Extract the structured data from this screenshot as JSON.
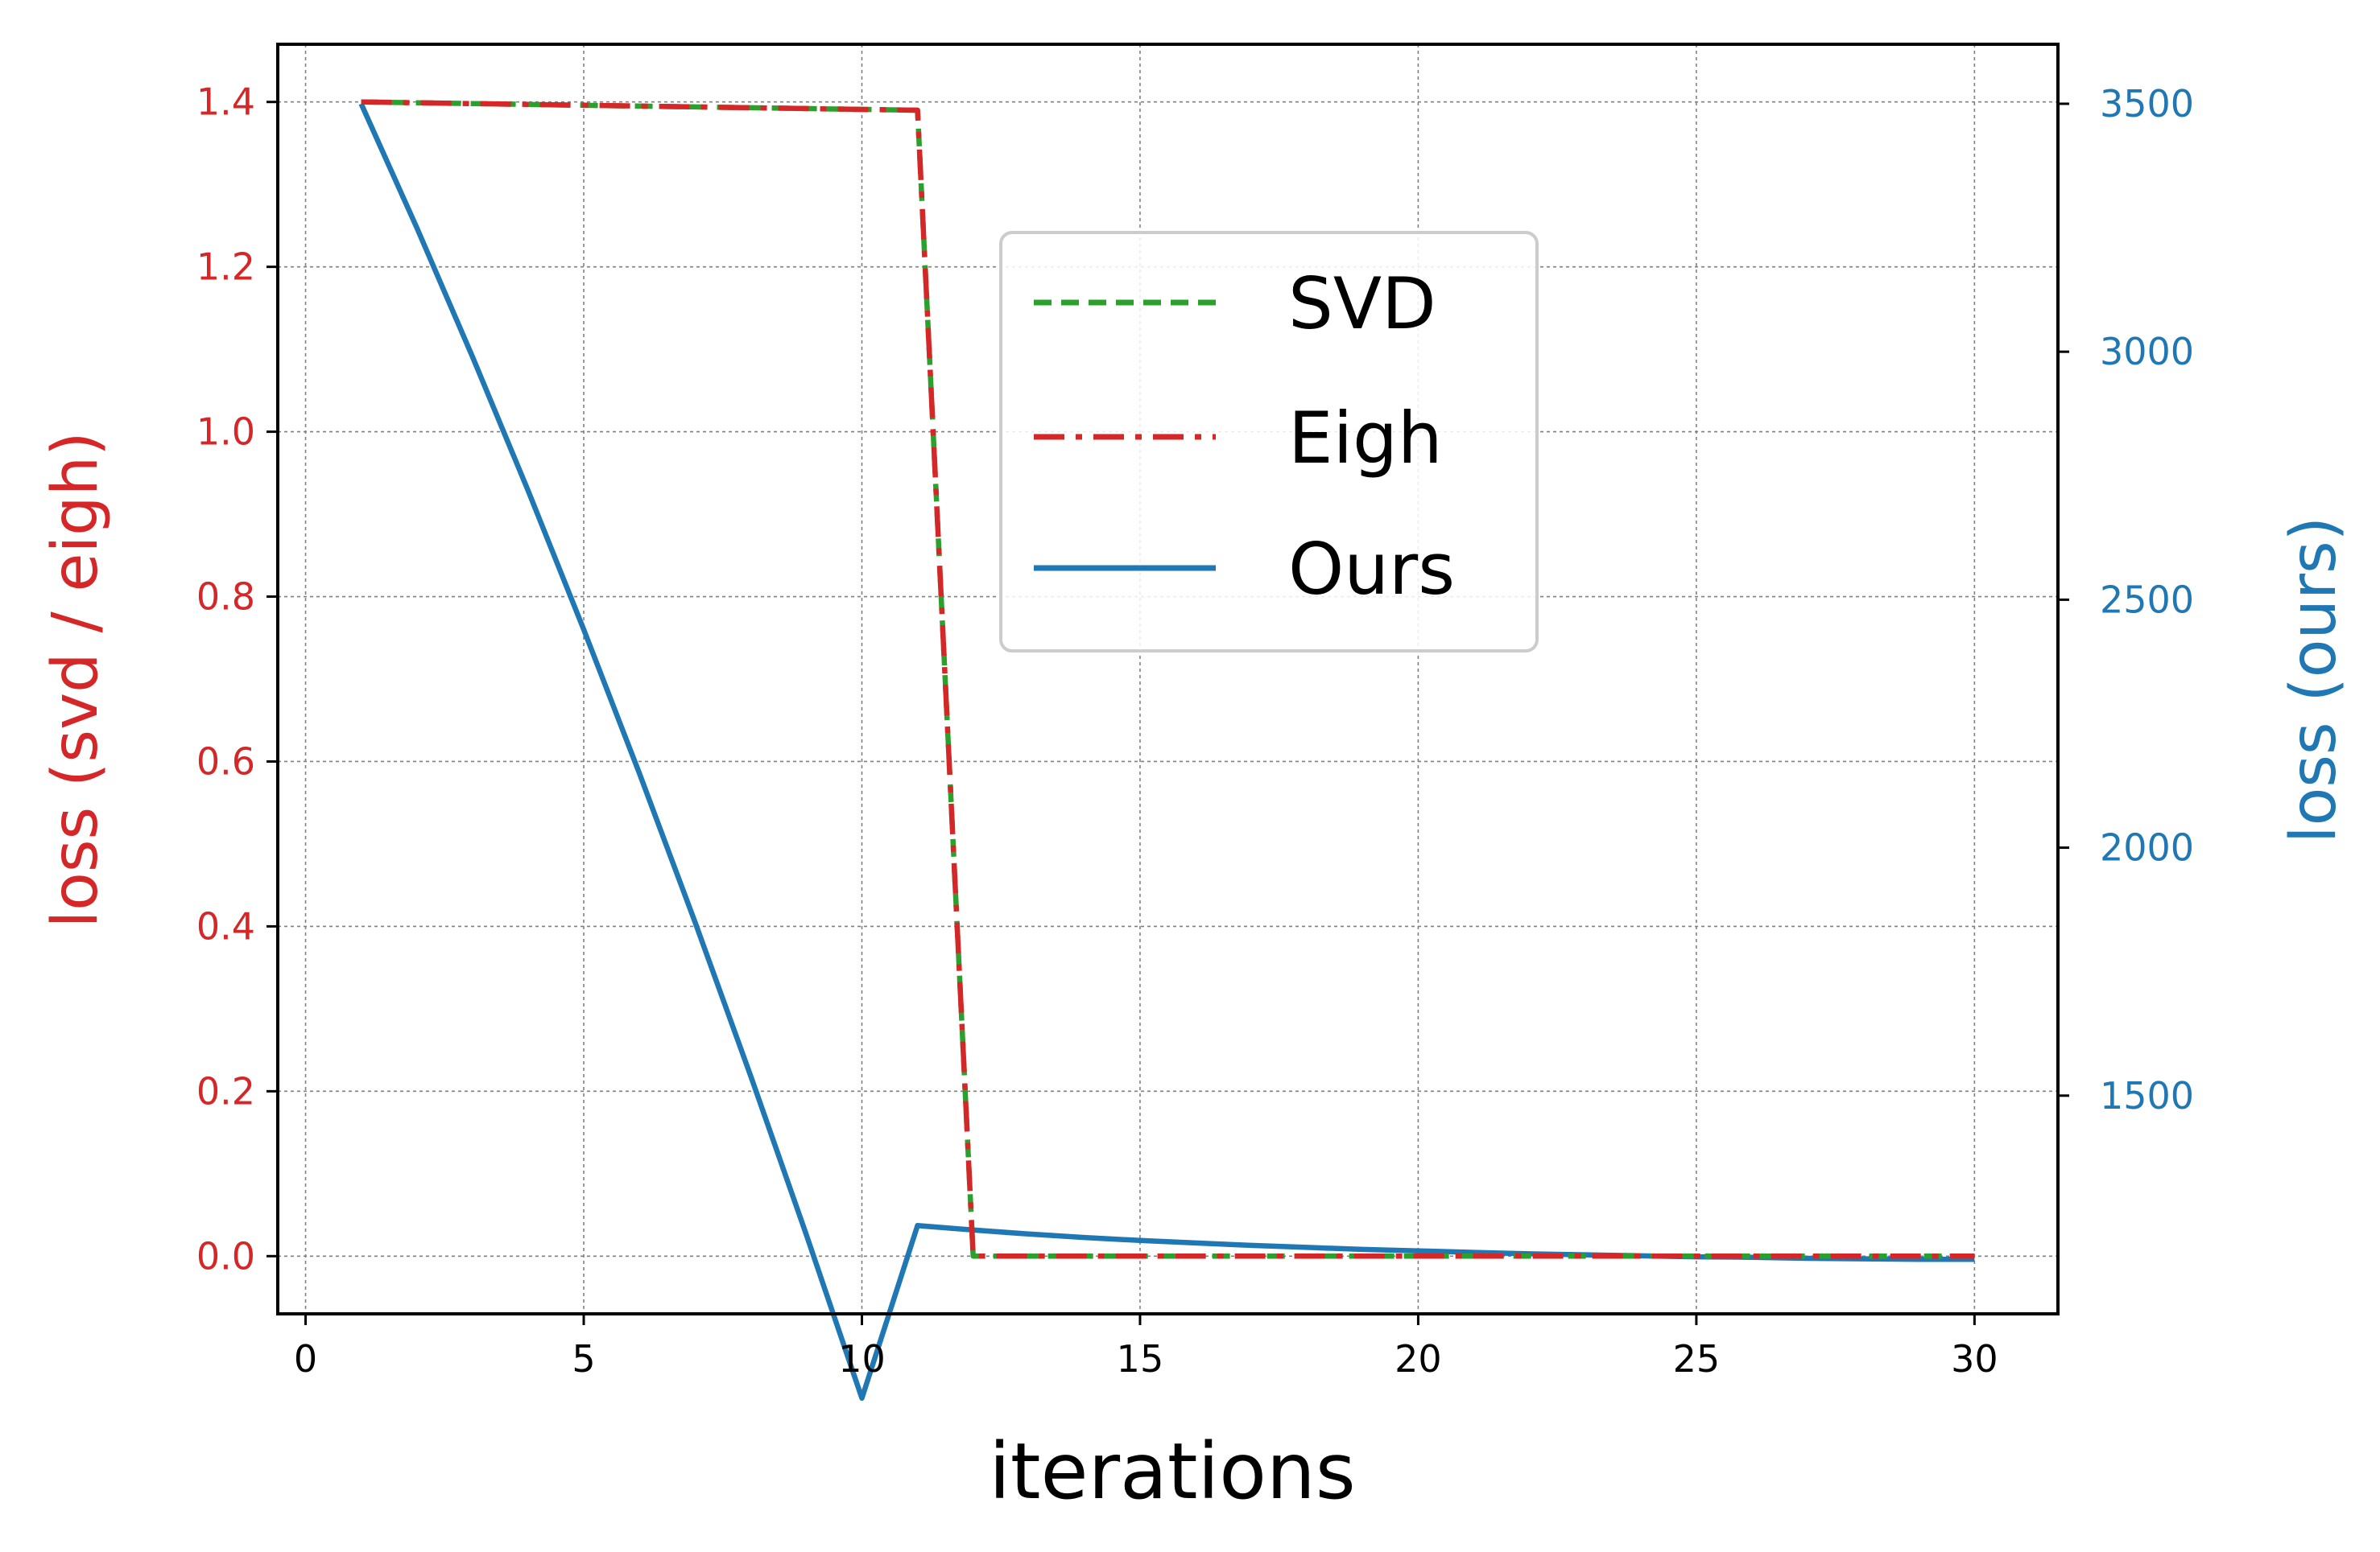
{
  "colors": {
    "svd": "#2ca02c",
    "eigh": "#d62728",
    "ours": "#1f77b4",
    "left_axis": "#d62728",
    "right_axis": "#1f77b4",
    "grid": "#808080",
    "frame": "#000000"
  },
  "chart_data": {
    "type": "line",
    "title": "",
    "xlabel": "iterations",
    "ylabel_left": "loss (svd / eigh)",
    "ylabel_right": "loss (ours)",
    "xlim": [
      -0.5,
      31.5
    ],
    "ylim_left": [
      -0.07,
      1.47
    ],
    "ylim_right": [
      1060,
      3620
    ],
    "x_ticks": [
      0,
      5,
      10,
      15,
      20,
      25,
      30
    ],
    "y_ticks_left": [
      0.0,
      0.2,
      0.4,
      0.6,
      0.8,
      1.0,
      1.2,
      1.4
    ],
    "y_ticks_right": [
      1500,
      2000,
      2500,
      3000,
      3500
    ],
    "grid": true,
    "legend_position": "upper-center",
    "series": [
      {
        "name": "SVD",
        "axis": "left",
        "style": "dashed",
        "color": "#2ca02c",
        "x": [
          1,
          11,
          12,
          13,
          14,
          15,
          16,
          17,
          18,
          19,
          20,
          21,
          22,
          23,
          24,
          25,
          26,
          27,
          28,
          29,
          30
        ],
        "y": [
          1.4,
          1.39,
          0.0,
          0.0,
          0.0,
          0.0,
          0.0,
          0.0,
          0.0,
          0.0,
          0.0,
          0.0,
          0.0,
          0.0,
          0.0,
          0.0,
          0.0,
          0.0,
          0.0,
          0.0,
          0.0
        ]
      },
      {
        "name": "Eigh",
        "axis": "left",
        "style": "dashdot",
        "color": "#d62728",
        "x": [
          1,
          11,
          12,
          13,
          14,
          15,
          16,
          17,
          18,
          19,
          20,
          21,
          22,
          23,
          24,
          25,
          26,
          27,
          28,
          29,
          30
        ],
        "y": [
          1.4,
          1.39,
          0.0,
          0.0,
          0.0,
          0.0,
          0.0,
          0.0,
          0.0,
          0.0,
          0.0,
          0.0,
          0.0,
          0.0,
          0.0,
          0.0,
          0.0,
          0.0,
          0.0,
          0.0,
          0.0
        ]
      },
      {
        "name": "Ours",
        "axis": "right",
        "style": "solid",
        "color": "#1f77b4",
        "x": [
          1,
          2,
          3,
          4,
          5,
          6,
          7,
          8,
          9,
          10,
          11,
          12,
          13,
          14,
          15,
          16,
          17,
          18,
          19,
          20,
          21,
          22,
          23,
          24,
          25,
          26,
          27,
          28,
          29,
          30
        ],
        "y": [
          3500,
          3250,
          2990,
          2720,
          2440,
          2150,
          1850,
          1540,
          1220,
          890,
          1238,
          1229,
          1221,
          1214,
          1208,
          1203,
          1198,
          1194,
          1190,
          1187,
          1184,
          1181,
          1179,
          1177,
          1175,
          1174,
          1172,
          1171,
          1170,
          1170
        ]
      }
    ]
  }
}
